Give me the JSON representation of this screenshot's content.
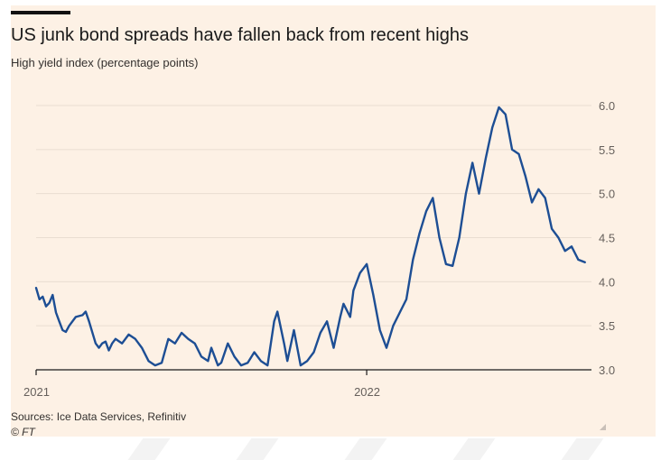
{
  "header": {
    "title": "US junk bond spreads have fallen back from recent highs",
    "subtitle": "High yield index (percentage points)"
  },
  "footer": {
    "source": "Sources: Ice Data Services, Refinitiv",
    "credit": "© FT"
  },
  "colors": {
    "background": "#fdf1e5",
    "line": "#1d4e94",
    "grid": "#e9ddd1",
    "text": "#33302e"
  },
  "chart_data": {
    "type": "line",
    "title": "US junk bond spreads have fallen back from recent highs",
    "subtitle": "High yield index (percentage points)",
    "ylim": [
      3.0,
      6.0
    ],
    "y_ticks": [
      "3.0",
      "3.5",
      "4.0",
      "4.5",
      "5.0",
      "5.5",
      "6.0"
    ],
    "x_ticks": [
      {
        "label": "2021",
        "x": 2021.0
      },
      {
        "label": "2022",
        "x": 2022.0
      }
    ],
    "y_axis_side": "right",
    "grid": true,
    "series": [
      {
        "color": "#1d4e94",
        "x": [
          2021.0,
          2021.01,
          2021.02,
          2021.03,
          2021.04,
          2021.05,
          2021.06,
          2021.07,
          2021.08,
          2021.09,
          2021.1,
          2021.12,
          2021.14,
          2021.15,
          2021.16,
          2021.18,
          2021.19,
          2021.2,
          2021.21,
          2021.22,
          2021.23,
          2021.24,
          2021.26,
          2021.28,
          2021.3,
          2021.32,
          2021.34,
          2021.36,
          2021.38,
          2021.4,
          2021.42,
          2021.44,
          2021.46,
          2021.48,
          2021.5,
          2021.52,
          2021.53,
          2021.55,
          2021.56,
          2021.58,
          2021.6,
          2021.62,
          2021.64,
          2021.66,
          2021.68,
          2021.7,
          2021.72,
          2021.73,
          2021.75,
          2021.76,
          2021.78,
          2021.8,
          2021.82,
          2021.84,
          2021.86,
          2021.88,
          2021.9,
          2021.92,
          2021.93,
          2021.95,
          2021.96,
          2021.98,
          2022.0,
          2022.02,
          2022.04,
          2022.06,
          2022.08,
          2022.1,
          2022.12,
          2022.14,
          2022.16,
          2022.18,
          2022.2,
          2022.22,
          2022.24,
          2022.26,
          2022.28,
          2022.3,
          2022.32,
          2022.34,
          2022.36,
          2022.38,
          2022.4,
          2022.42,
          2022.44,
          2022.46,
          2022.48,
          2022.5,
          2022.52,
          2022.54,
          2022.56,
          2022.58,
          2022.6,
          2022.62,
          2022.64,
          2022.66
        ],
        "values": [
          3.93,
          3.8,
          3.83,
          3.72,
          3.76,
          3.85,
          3.65,
          3.55,
          3.45,
          3.43,
          3.5,
          3.6,
          3.62,
          3.66,
          3.55,
          3.3,
          3.25,
          3.3,
          3.32,
          3.22,
          3.3,
          3.35,
          3.3,
          3.4,
          3.35,
          3.25,
          3.1,
          3.05,
          3.08,
          3.35,
          3.3,
          3.42,
          3.35,
          3.3,
          3.15,
          3.1,
          3.25,
          3.05,
          3.08,
          3.3,
          3.15,
          3.05,
          3.08,
          3.2,
          3.1,
          3.05,
          3.55,
          3.66,
          3.3,
          3.1,
          3.45,
          3.05,
          3.1,
          3.2,
          3.42,
          3.55,
          3.25,
          3.6,
          3.75,
          3.6,
          3.9,
          4.1,
          4.2,
          3.85,
          3.45,
          3.25,
          3.5,
          3.65,
          3.8,
          4.25,
          4.55,
          4.8,
          4.95,
          4.5,
          4.2,
          4.18,
          4.5,
          5.0,
          5.35,
          5.0,
          5.4,
          5.75,
          5.98,
          5.9,
          5.5,
          5.45,
          5.2,
          4.9,
          5.05,
          4.95,
          4.6,
          4.5,
          4.35,
          4.4,
          4.25,
          4.22
        ]
      }
    ]
  }
}
